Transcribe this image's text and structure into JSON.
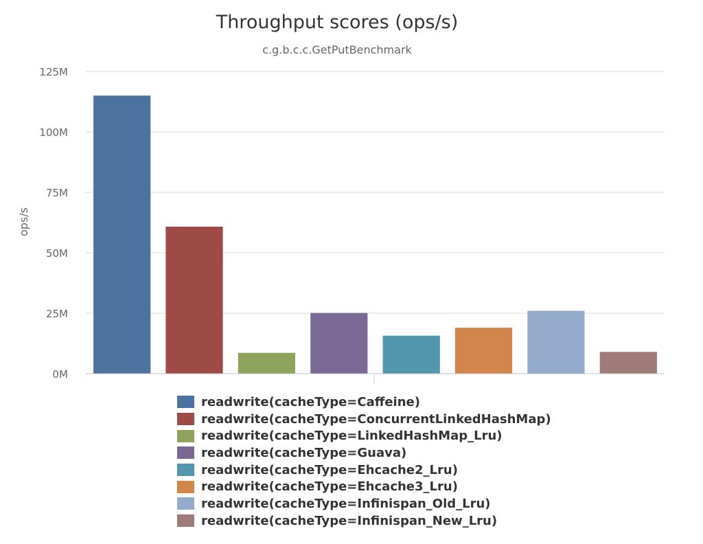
{
  "chart_data": {
    "type": "bar",
    "title": "Throughput scores (ops/s)",
    "subtitle": "c.g.b.c.c.GetPutBenchmark",
    "ylabel": "ops/s",
    "ylim": [
      0,
      125000000
    ],
    "yticks": [
      {
        "value": 0,
        "label": "0M"
      },
      {
        "value": 25000000,
        "label": "25M"
      },
      {
        "value": 50000000,
        "label": "50M"
      },
      {
        "value": 75000000,
        "label": "75M"
      },
      {
        "value": 100000000,
        "label": "100M"
      },
      {
        "value": 125000000,
        "label": "125M"
      }
    ],
    "grid": true,
    "legend_position": "bottom",
    "series": [
      {
        "name": "readwrite(cacheType=Caffeine)",
        "value": 115000000,
        "color": "#4c72a0"
      },
      {
        "name": "readwrite(cacheType=ConcurrentLinkedHashMap)",
        "value": 60800000,
        "color": "#9e4a46"
      },
      {
        "name": "readwrite(cacheType=LinkedHashMap_Lru)",
        "value": 8600000,
        "color": "#8ea35b"
      },
      {
        "name": "readwrite(cacheType=Guava)",
        "value": 25100000,
        "color": "#7b6995"
      },
      {
        "name": "readwrite(cacheType=Ehcache2_Lru)",
        "value": 15700000,
        "color": "#5196ad"
      },
      {
        "name": "readwrite(cacheType=Ehcache3_Lru)",
        "value": 19000000,
        "color": "#d2864b"
      },
      {
        "name": "readwrite(cacheType=Infinispan_Old_Lru)",
        "value": 26000000,
        "color": "#95abcc"
      },
      {
        "name": "readwrite(cacheType=Infinispan_New_Lru)",
        "value": 9000000,
        "color": "#9f7c7a"
      }
    ]
  }
}
